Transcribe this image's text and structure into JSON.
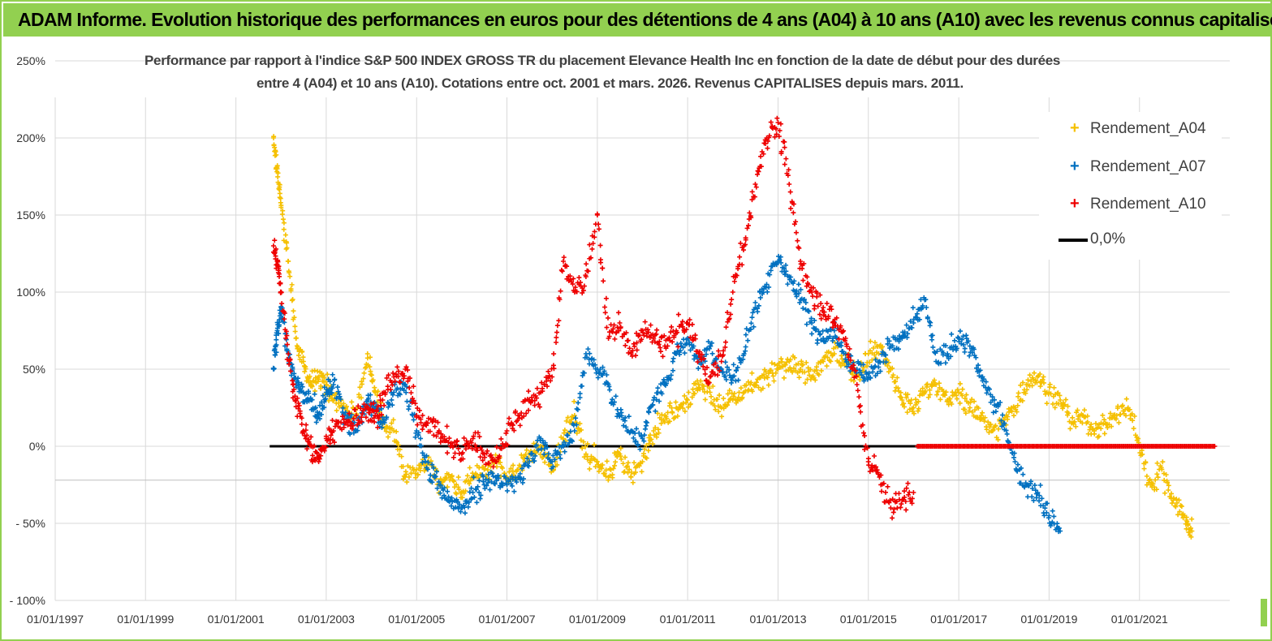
{
  "header": {
    "title": "ADAM Informe. Evolution historique des performances en euros pour des détentions de 4 ans (A04) à 10 ans (A10) avec les revenus connus capitalisés"
  },
  "colors": {
    "header_bg": "#92d050",
    "A04": "#f5c000",
    "A07": "#0070c0",
    "A10": "#ee0000",
    "zero": "#000000"
  },
  "chart_data": {
    "type": "scatter",
    "title_lines": [
      "Performance par rapport à l'indice S&P 500 INDEX GROSS TR  du placement Elevance Health Inc en fonction de la date de début pour des durées",
      "entre 4 (A04) et 10 ans (A10). Cotations entre oct. 2001 et mars. 2026. Revenus CAPITALISES depuis mars. 2011."
    ],
    "x_range": [
      "1997-01-01",
      "2023-01-01"
    ],
    "y_range": [
      -100,
      250
    ],
    "y_ticks": [
      "250%",
      "200%",
      "150%",
      "100%",
      "50%",
      "0%",
      "- 50%",
      "- 100%"
    ],
    "x_ticks": [
      "01/01/1997",
      "01/01/1999",
      "01/01/2001",
      "01/01/2003",
      "01/01/2005",
      "01/01/2007",
      "01/01/2009",
      "01/01/2011",
      "01/01/2013",
      "01/01/2015",
      "01/01/2017",
      "01/01/2019",
      "01/01/2021"
    ],
    "grid": true,
    "legend_position": "top-right",
    "legend": [
      "Rendement_A04",
      "Rendement_A07",
      "Rendement_A10",
      "0,0%"
    ],
    "series": [
      {
        "name": "Rendement_A04",
        "x": [
          "2001-11-01",
          "2001-12-01",
          "2002-01-01",
          "2002-03-01",
          "2002-05-01",
          "2002-07-01",
          "2002-09-01",
          "2002-11-01",
          "2003-01-01",
          "2003-03-01",
          "2003-06-01",
          "2003-09-01",
          "2003-12-01",
          "2004-02-01",
          "2004-04-01",
          "2004-07-01",
          "2004-10-01",
          "2005-01-01",
          "2005-04-01",
          "2005-07-01",
          "2005-10-01",
          "2006-01-01",
          "2006-04-01",
          "2006-07-01",
          "2006-10-01",
          "2007-01-01",
          "2007-04-01",
          "2007-07-01",
          "2007-10-01",
          "2008-01-01",
          "2008-04-01",
          "2008-07-01",
          "2008-10-01",
          "2009-01-01",
          "2009-04-01",
          "2009-07-01",
          "2009-10-01",
          "2010-01-01",
          "2010-04-01",
          "2010-07-01",
          "2010-10-01",
          "2011-01-01",
          "2011-04-01",
          "2011-07-01",
          "2011-10-01",
          "2012-01-01",
          "2012-04-01",
          "2012-07-01",
          "2012-10-01",
          "2013-01-01",
          "2013-04-01",
          "2013-07-01",
          "2013-10-01",
          "2014-01-01",
          "2014-04-01",
          "2014-07-01",
          "2014-10-01",
          "2015-01-01",
          "2015-04-01",
          "2015-07-01",
          "2015-10-01",
          "2016-01-01",
          "2016-04-01",
          "2016-07-01",
          "2016-10-01",
          "2017-01-01",
          "2017-04-01",
          "2017-07-01",
          "2017-10-01",
          "2018-01-01",
          "2018-04-01",
          "2018-07-01",
          "2018-10-01",
          "2019-01-01",
          "2019-04-01",
          "2019-07-01",
          "2019-10-01",
          "2020-01-01",
          "2020-04-01",
          "2020-07-01",
          "2020-10-01",
          "2021-01-01",
          "2021-04-01",
          "2021-07-01",
          "2021-10-01",
          "2022-01-01",
          "2022-03-01"
        ],
        "y": [
          200,
          180,
          155,
          120,
          70,
          55,
          40,
          45,
          40,
          30,
          25,
          20,
          60,
          35,
          15,
          10,
          -20,
          -15,
          -10,
          -25,
          -20,
          -30,
          -20,
          -15,
          -10,
          -20,
          -15,
          -5,
          0,
          -15,
          5,
          20,
          -5,
          -10,
          -20,
          -5,
          -20,
          -10,
          10,
          20,
          25,
          30,
          40,
          35,
          25,
          30,
          35,
          40,
          45,
          50,
          55,
          50,
          45,
          55,
          60,
          55,
          45,
          60,
          65,
          50,
          30,
          25,
          35,
          40,
          30,
          35,
          25,
          20,
          10,
          15,
          25,
          40,
          45,
          35,
          30,
          15,
          20,
          10,
          15,
          20,
          25,
          0,
          -25,
          -15,
          -35,
          -45,
          -55
        ]
      },
      {
        "name": "Rendement_A07",
        "x": [
          "2001-11-01",
          "2001-12-01",
          "2002-01-01",
          "2002-03-01",
          "2002-05-01",
          "2002-07-01",
          "2002-09-01",
          "2002-11-01",
          "2003-01-01",
          "2003-03-01",
          "2003-06-01",
          "2003-09-01",
          "2003-12-01",
          "2004-02-01",
          "2004-04-01",
          "2004-07-01",
          "2004-10-01",
          "2005-01-01",
          "2005-04-01",
          "2005-07-01",
          "2005-10-01",
          "2006-01-01",
          "2006-04-01",
          "2006-07-01",
          "2006-10-01",
          "2007-01-01",
          "2007-04-01",
          "2007-07-01",
          "2007-10-01",
          "2008-01-01",
          "2008-04-01",
          "2008-07-01",
          "2008-10-01",
          "2009-01-01",
          "2009-04-01",
          "2009-07-01",
          "2009-10-01",
          "2010-01-01",
          "2010-04-01",
          "2010-07-01",
          "2010-10-01",
          "2011-01-01",
          "2011-04-01",
          "2011-07-01",
          "2011-10-01",
          "2012-01-01",
          "2012-04-01",
          "2012-07-01",
          "2012-10-01",
          "2013-01-01",
          "2013-04-01",
          "2013-07-01",
          "2013-10-01",
          "2014-01-01",
          "2014-04-01",
          "2014-07-01",
          "2014-10-01",
          "2015-01-01",
          "2015-04-01",
          "2015-07-01",
          "2015-10-01",
          "2016-01-01",
          "2016-04-01",
          "2016-07-01",
          "2016-10-01",
          "2017-01-01",
          "2017-04-01",
          "2017-07-01",
          "2017-10-01",
          "2018-01-01",
          "2018-04-01",
          "2018-07-01",
          "2018-10-01",
          "2019-01-01",
          "2019-04-01"
        ],
        "y": [
          50,
          75,
          90,
          60,
          40,
          35,
          30,
          20,
          35,
          40,
          20,
          10,
          30,
          25,
          15,
          35,
          40,
          10,
          -15,
          -25,
          -35,
          -40,
          -30,
          -25,
          -20,
          -25,
          -20,
          -10,
          5,
          -10,
          0,
          10,
          60,
          50,
          40,
          20,
          10,
          5,
          30,
          40,
          60,
          70,
          55,
          65,
          50,
          45,
          60,
          90,
          105,
          120,
          110,
          95,
          80,
          70,
          75,
          60,
          50,
          45,
          55,
          65,
          70,
          80,
          95,
          55,
          60,
          70,
          65,
          45,
          30,
          15,
          -10,
          -25,
          -30,
          -45,
          -55
        ]
      },
      {
        "name": "Rendement_A10",
        "x": [
          "2001-11-01",
          "2001-12-01",
          "2002-01-01",
          "2002-03-01",
          "2002-05-01",
          "2002-07-01",
          "2002-09-01",
          "2002-11-01",
          "2003-01-01",
          "2003-03-01",
          "2003-06-01",
          "2003-09-01",
          "2003-12-01",
          "2004-02-01",
          "2004-04-01",
          "2004-07-01",
          "2004-10-01",
          "2005-01-01",
          "2005-04-01",
          "2005-07-01",
          "2005-10-01",
          "2006-01-01",
          "2006-04-01",
          "2006-07-01",
          "2006-10-01",
          "2007-01-01",
          "2007-04-01",
          "2007-07-01",
          "2007-10-01",
          "2008-01-01",
          "2008-04-01",
          "2008-07-01",
          "2008-10-01",
          "2009-01-01",
          "2009-04-01",
          "2009-07-01",
          "2009-10-01",
          "2010-01-01",
          "2010-04-01",
          "2010-07-01",
          "2010-10-01",
          "2011-01-01",
          "2011-04-01",
          "2011-07-01",
          "2011-10-01",
          "2012-01-01",
          "2012-04-01",
          "2012-07-01",
          "2012-10-01",
          "2013-01-01",
          "2013-04-01",
          "2013-07-01",
          "2013-10-01",
          "2014-01-01",
          "2014-04-01",
          "2014-07-01",
          "2014-10-01",
          "2015-01-01",
          "2015-04-01",
          "2015-07-01",
          "2015-10-01",
          "2016-01-01"
        ],
        "y": [
          130,
          120,
          100,
          60,
          30,
          10,
          0,
          -10,
          5,
          10,
          15,
          20,
          25,
          20,
          30,
          45,
          50,
          20,
          15,
          10,
          0,
          -5,
          5,
          -5,
          -10,
          10,
          20,
          30,
          35,
          45,
          120,
          100,
          110,
          150,
          70,
          80,
          60,
          75,
          70,
          65,
          75,
          80,
          60,
          45,
          55,
          100,
          130,
          170,
          200,
          210,
          170,
          120,
          100,
          90,
          80,
          70,
          40,
          -10,
          -20,
          -40,
          -35,
          -30
        ]
      },
      {
        "name": "Rendement_A10",
        "x": [
          "2016-02-01",
          "2022-09-01"
        ],
        "y": [
          0,
          0
        ]
      },
      {
        "name": "0,0%",
        "x": [
          "2001-10-01",
          "2016-02-01"
        ],
        "y": [
          0,
          0
        ]
      }
    ]
  }
}
